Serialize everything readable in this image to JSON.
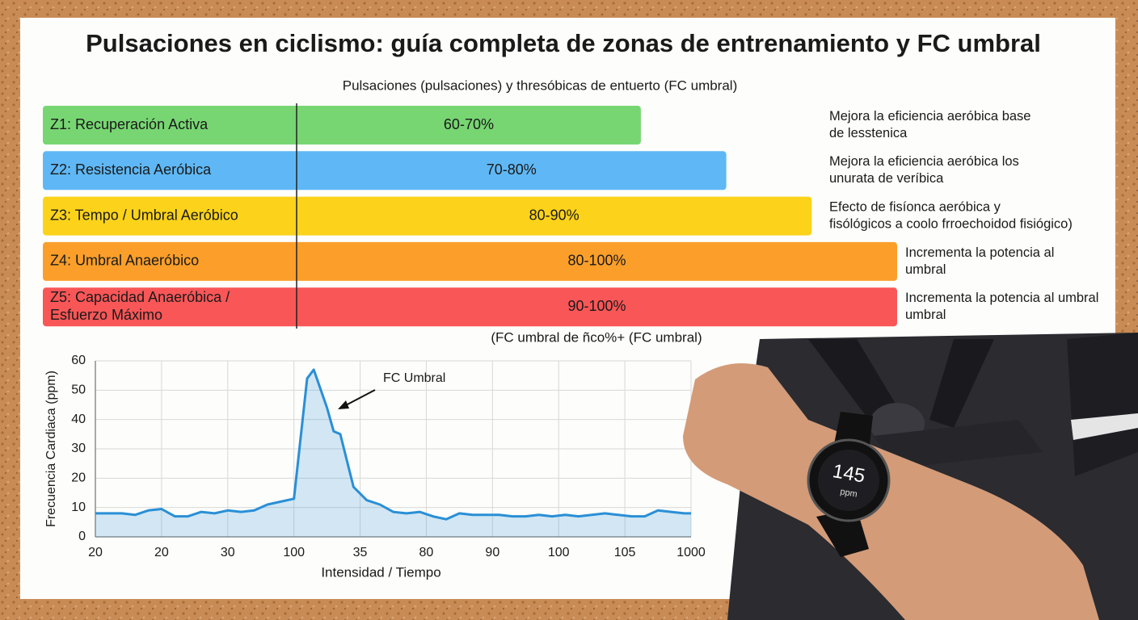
{
  "title": "Pulsaciones en ciclismo: guía completa de zonas de entrenamiento y FC umbral",
  "chart_data": [
    {
      "type": "bar",
      "orientation": "horizontal",
      "title": "Pulsaciones (pulsaciones) y thresóbicas de entuerto (FC umbral)",
      "footnote": "(FC umbral de ñco%+ (FC umbral)",
      "categories": [
        [
          "Z1: Recuperación Activa"
        ],
        [
          "Z2: Resistencia Aeróbica"
        ],
        [
          "Z3: Tempo / Umbral Aeróbico"
        ],
        [
          "Z4: Umbral Anaeróbico"
        ],
        [
          "Z5: Capacidad Anaeróbica /",
          "Esfuerzo Máximo"
        ]
      ],
      "values": [
        70,
        80,
        90,
        100,
        100
      ],
      "value_labels": [
        "60-70%",
        "70-80%",
        "80-90%",
        "80-100%",
        "90-100%"
      ],
      "colors": [
        "#77d672",
        "#5fb8f5",
        "#fcd31a",
        "#fb9f2a",
        "#f95657"
      ],
      "annotations": [
        [
          "Mejora la eficiencia aeróbica base",
          "de lesstenica"
        ],
        [
          "Mejora la eficiencia aeróbica los",
          "unurata de veríbica"
        ],
        [
          "Efecto de fisíonca aeróbica y",
          "fisólógicos a coolo frroechoidod fisiógico)"
        ],
        [
          "Incrementa la potencia al",
          "umbral"
        ],
        [
          "Incrementa la potencia al umbral",
          "umbral"
        ]
      ],
      "xlim": [
        0,
        100
      ]
    },
    {
      "type": "line",
      "xlabel": "Intensidad / Tiempo",
      "ylabel": "Frecuencia Cardiaca (ppm)",
      "annotation": "FC Umbral",
      "x": [
        0,
        0.2,
        0.4,
        0.6,
        0.8,
        1.0,
        1.2,
        1.4,
        1.6,
        1.8,
        2.0,
        2.2,
        2.4,
        2.6,
        2.8,
        3.0,
        3.2,
        3.3,
        3.5,
        3.6,
        3.7,
        3.9,
        4.1,
        4.3,
        4.5,
        4.7,
        4.9,
        5.1,
        5.3,
        5.5,
        5.7,
        5.9,
        6.1,
        6.3,
        6.5,
        6.7,
        6.9,
        7.1,
        7.3,
        7.5,
        7.7,
        7.9,
        8.1,
        8.3,
        8.5,
        8.7,
        8.9,
        9.0
      ],
      "series": [
        {
          "name": "Frecuencia Cardiaca",
          "color": "#2a8fd6",
          "values": [
            8,
            8,
            8,
            7.5,
            9,
            9.5,
            7,
            7,
            8.5,
            8,
            9,
            8.5,
            9,
            11,
            12,
            13,
            54,
            57,
            44,
            36,
            35,
            17,
            12.5,
            11,
            8.5,
            8,
            8.5,
            7,
            6,
            8,
            7.5,
            7.5,
            7.5,
            7,
            7,
            7.5,
            7,
            7.5,
            7,
            7.5,
            8,
            7.5,
            7,
            7,
            9,
            8.5,
            8,
            8
          ]
        }
      ],
      "xlim": [
        0,
        9
      ],
      "xticks": [
        {
          "value": 0,
          "label": "20"
        },
        {
          "value": 1,
          "label": "20"
        },
        {
          "value": 2,
          "label": "30"
        },
        {
          "value": 3,
          "label": "100"
        },
        {
          "value": 4,
          "label": "35"
        },
        {
          "value": 5,
          "label": "80"
        },
        {
          "value": 6,
          "label": "90"
        },
        {
          "value": 7,
          "label": "100"
        },
        {
          "value": 8,
          "label": "105"
        },
        {
          "value": 9,
          "label": "1000"
        }
      ],
      "ylim": [
        0,
        60
      ],
      "yticks": [
        0,
        10,
        20,
        30,
        40,
        50,
        60
      ],
      "grid": true
    }
  ],
  "photo": {
    "watch_reading": "145",
    "watch_unit": "ppm"
  }
}
